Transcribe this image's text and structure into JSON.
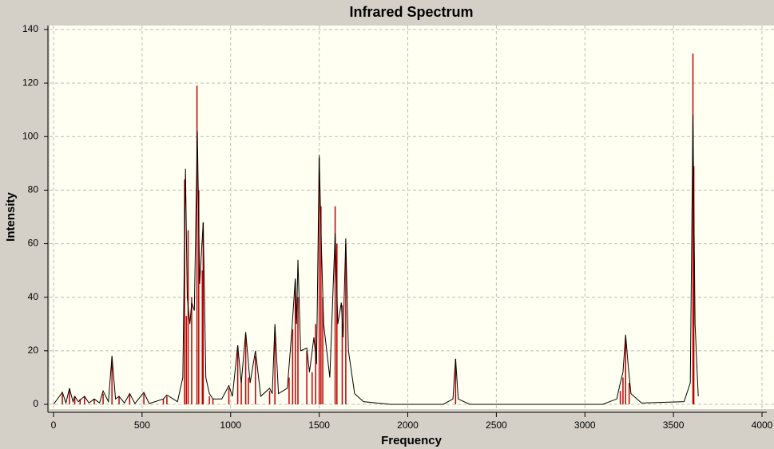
{
  "chart_data": {
    "type": "spectrum",
    "title": "Infrared Spectrum",
    "xlabel": "Frequency",
    "ylabel": "Intensity",
    "xlim": [
      0,
      4000
    ],
    "ylim": [
      0,
      140
    ],
    "xticks": [
      0,
      500,
      1000,
      1500,
      2000,
      2500,
      3000,
      3500,
      4000
    ],
    "yticks": [
      0,
      20,
      40,
      60,
      80,
      100,
      120,
      140
    ],
    "grid": true,
    "series": [
      {
        "style": "stick",
        "color": "#c00000",
        "x": [
          50,
          90,
          120,
          150,
          175,
          230,
          280,
          330,
          370,
          430,
          510,
          620,
          640,
          740,
          750,
          760,
          780,
          810,
          820,
          840,
          845,
          880,
          900,
          990,
          1040,
          1060,
          1085,
          1100,
          1140,
          1220,
          1250,
          1330,
          1350,
          1365,
          1380,
          1430,
          1460,
          1480,
          1500,
          1510,
          1520,
          1590,
          1600,
          1630,
          1650,
          2270,
          3200,
          3215,
          3230,
          3250,
          3610,
          3615
        ],
        "values": [
          4,
          6,
          3,
          2,
          3,
          2,
          4,
          18,
          3,
          4,
          4,
          2,
          3,
          84,
          33,
          65,
          40,
          119,
          80,
          50,
          68,
          3,
          2,
          6,
          22,
          10,
          26,
          10,
          18,
          5,
          29,
          10,
          28,
          46,
          40,
          20,
          12,
          30,
          92,
          74,
          40,
          74,
          60,
          37,
          60,
          17,
          5,
          10,
          24,
          8,
          131,
          89
        ]
      },
      {
        "style": "line",
        "color": "#000000",
        "x": [
          0,
          50,
          70,
          90,
          110,
          120,
          140,
          175,
          200,
          230,
          260,
          280,
          310,
          330,
          350,
          370,
          400,
          430,
          460,
          510,
          540,
          620,
          640,
          700,
          730,
          745,
          755,
          770,
          780,
          795,
          812,
          825,
          845,
          860,
          880,
          900,
          950,
          990,
          1010,
          1040,
          1060,
          1085,
          1110,
          1140,
          1170,
          1220,
          1235,
          1250,
          1270,
          1320,
          1345,
          1365,
          1372,
          1380,
          1395,
          1430,
          1445,
          1470,
          1485,
          1500,
          1512,
          1525,
          1560,
          1590,
          1605,
          1625,
          1635,
          1650,
          1665,
          1700,
          1750,
          1900,
          2200,
          2255,
          2270,
          2285,
          2350,
          3100,
          3180,
          3200,
          3215,
          3230,
          3245,
          3260,
          3320,
          3560,
          3595,
          3610,
          3622,
          3640
        ],
        "values": [
          0,
          4.5,
          0.5,
          6,
          1,
          3,
          1,
          3,
          0.5,
          2,
          0.5,
          5,
          1,
          18,
          2,
          3,
          0.5,
          4,
          0.3,
          4.5,
          0.3,
          2,
          3.5,
          1,
          10,
          88,
          40,
          30,
          38,
          35,
          102,
          45,
          68,
          10,
          4,
          2,
          2,
          7,
          3,
          22,
          8,
          27,
          8,
          20,
          3,
          6,
          4,
          30,
          4,
          6,
          27,
          47,
          30,
          54,
          20,
          21,
          12,
          25,
          15,
          93,
          60,
          30,
          10,
          64,
          30,
          38,
          25,
          62,
          20,
          4,
          1,
          0,
          0,
          2,
          17,
          2,
          0,
          0,
          2,
          8,
          12,
          26,
          14,
          4,
          0.5,
          1,
          8,
          108,
          30,
          3
        ]
      }
    ]
  }
}
